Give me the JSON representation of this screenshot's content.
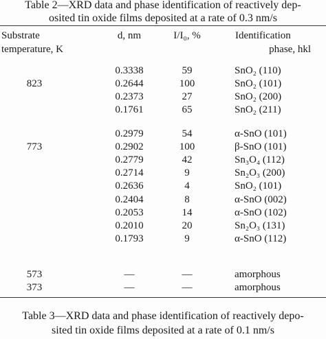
{
  "table2": {
    "caption": [
      "Table 2—XRD data and phase identification of reactively dep-",
      "osited tin oxide films deposited at a rate of 0.3 nm/s"
    ],
    "headers": [
      [
        "Substrate",
        "temperature, K"
      ],
      [
        "d, nm"
      ],
      [
        "I/I₀, %"
      ],
      [
        "Identification",
        "phase, hkl"
      ]
    ],
    "groups": [
      {
        "temperature": "823",
        "rows": [
          [
            "0.3338",
            "59",
            "SnO₂ (110)"
          ],
          [
            "0.2644",
            "100",
            "SnO₂ (101)"
          ],
          [
            "0.2373",
            "27",
            "SnO₂ (200)"
          ],
          [
            "0.1761",
            "65",
            "SnO₂ (211)"
          ]
        ]
      },
      {
        "temperature": "773",
        "rows": [
          [
            "0.2979",
            "54",
            "α-SnO (101)"
          ],
          [
            "0.2902",
            "100",
            "β-SnO (101)"
          ],
          [
            "0.2779",
            "42",
            "Sn₃O₄ (112)"
          ],
          [
            "0.2714",
            "9",
            "Sn₂O₃ (200)"
          ],
          [
            "0.2636",
            "4",
            "SnO₂ (101)"
          ],
          [
            "0.2404",
            "8",
            "α-SnO (002)"
          ],
          [
            "0.2053",
            "14",
            "α-SnO (102)"
          ],
          [
            "0.2010",
            "20",
            "Sn₂O₃ (131)"
          ],
          [
            "0.1793",
            "9",
            "α-SnO (112)"
          ]
        ]
      },
      {
        "temperature": "573",
        "rows": [
          [
            "—",
            "—",
            "amorphous"
          ]
        ]
      },
      {
        "temperature": "373",
        "rows": [
          [
            "—",
            "—",
            "amorphous"
          ]
        ]
      }
    ]
  },
  "table3": {
    "caption": [
      "Table 3—XRD data and phase identification of reactively depo-",
      "sited tin oxide films deposited at a rate of 0.1 nm/s"
    ]
  }
}
